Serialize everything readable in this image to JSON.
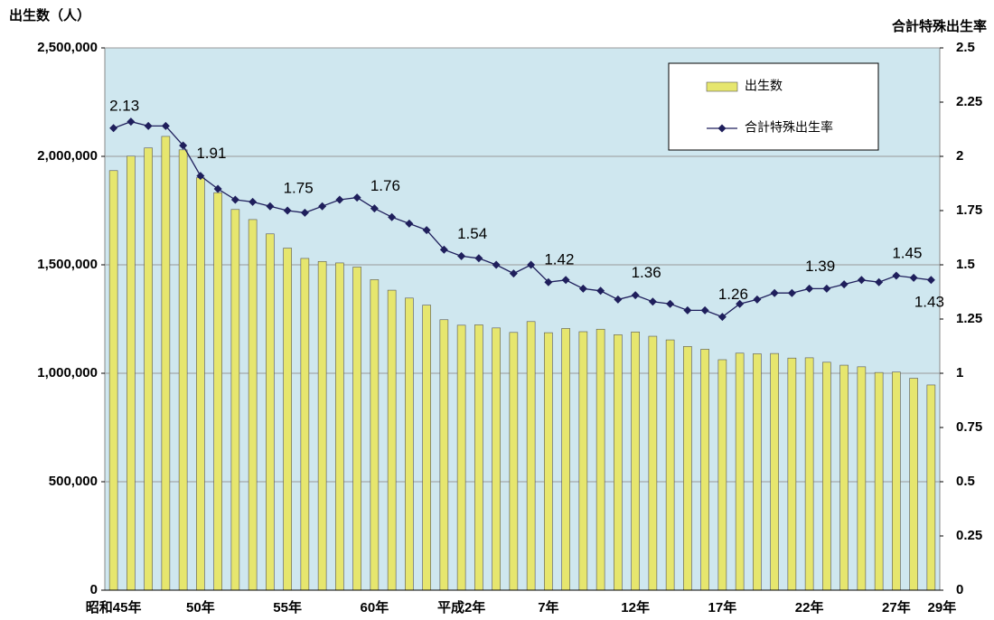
{
  "chart_data": {
    "type": "bar_line",
    "y_label": "出生数（人）",
    "y2_label": "合計特殊出生率",
    "categories": [
      "昭和45年",
      null,
      null,
      null,
      null,
      "50年",
      null,
      null,
      null,
      null,
      "55年",
      null,
      null,
      null,
      null,
      "60年",
      null,
      null,
      null,
      null,
      "平成2年",
      null,
      null,
      null,
      null,
      "7年",
      null,
      null,
      null,
      null,
      "12年",
      null,
      null,
      null,
      null,
      "17年",
      null,
      null,
      null,
      null,
      "22年",
      null,
      null,
      null,
      null,
      "27年",
      null,
      "29年"
    ],
    "series": [
      {
        "name": "出生数",
        "color": "#e6e66e",
        "type": "bar",
        "axis": "y",
        "values": [
          1934239,
          2000973,
          2038682,
          2091983,
          2029989,
          1901440,
          1832617,
          1755100,
          1708643,
          1642580,
          1576889,
          1529455,
          1515392,
          1508687,
          1489780,
          1431577,
          1382946,
          1346658,
          1314006,
          1246802,
          1221585,
          1223245,
          1208989,
          1188282,
          1238328,
          1187064,
          1206555,
          1191665,
          1203147,
          1177669,
          1190547,
          1170662,
          1153855,
          1123610,
          1110721,
          1062530,
          1092674,
          1089818,
          1091156,
          1070035,
          1071304,
          1050806,
          1037231,
          1029816,
          1003539,
          1005677,
          976978,
          946065
        ]
      },
      {
        "name": "合計特殊出生率",
        "color": "#1f1f5c",
        "type": "line",
        "axis": "y2",
        "values": [
          2.13,
          2.16,
          2.14,
          2.14,
          2.05,
          1.91,
          1.85,
          1.8,
          1.79,
          1.77,
          1.75,
          1.74,
          1.77,
          1.8,
          1.81,
          1.76,
          1.72,
          1.69,
          1.66,
          1.57,
          1.54,
          1.53,
          1.5,
          1.46,
          1.5,
          1.42,
          1.43,
          1.39,
          1.38,
          1.34,
          1.36,
          1.33,
          1.32,
          1.29,
          1.29,
          1.26,
          1.32,
          1.34,
          1.37,
          1.37,
          1.39,
          1.39,
          1.41,
          1.43,
          1.42,
          1.45,
          1.44,
          1.43
        ],
        "value_labels": [
          "2.13",
          null,
          null,
          null,
          null,
          "1.91",
          null,
          null,
          null,
          null,
          "1.75",
          null,
          null,
          null,
          null,
          "1.76",
          null,
          null,
          null,
          null,
          "1.54",
          null,
          null,
          null,
          null,
          "1.42",
          null,
          null,
          null,
          null,
          "1.36",
          null,
          null,
          null,
          null,
          "1.26",
          null,
          null,
          null,
          null,
          "1.39",
          null,
          null,
          null,
          null,
          "1.45",
          null,
          "1.43"
        ]
      }
    ],
    "ylim": [
      0,
      2500000
    ],
    "yticks": [
      {
        "value": 0,
        "label": "0"
      },
      {
        "value": 500000,
        "label": "500,000"
      },
      {
        "value": 1000000,
        "label": "1,000,000"
      },
      {
        "value": 1500000,
        "label": "1,500,000"
      },
      {
        "value": 2000000,
        "label": "2,000,000"
      },
      {
        "value": 2500000,
        "label": "2,500,000"
      }
    ],
    "y2lim": [
      0,
      2.5
    ],
    "y2ticks": [
      0,
      0.25,
      0.5,
      0.75,
      1,
      1.25,
      1.5,
      1.75,
      2,
      2.25,
      2.5
    ],
    "grid": true,
    "legend": "upper right",
    "background": "#cfe7ef"
  }
}
